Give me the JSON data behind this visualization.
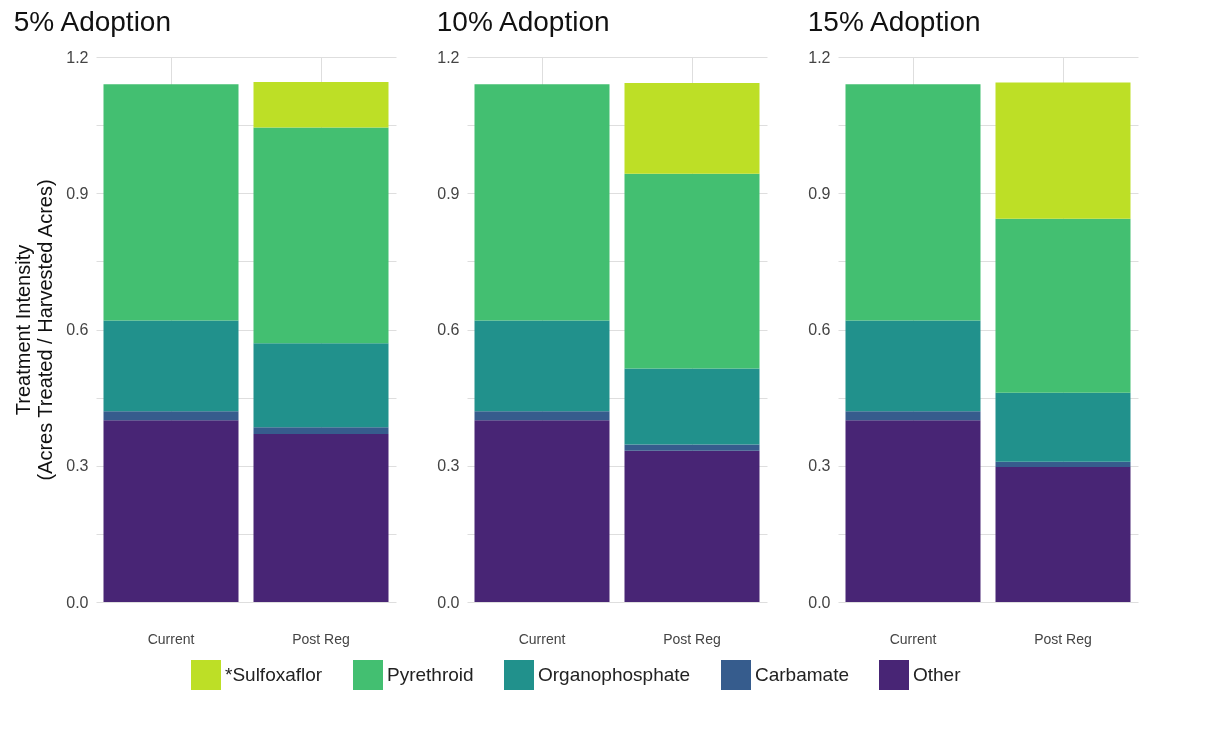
{
  "chart_data": [
    {
      "type": "bar",
      "title": "5% Adoption",
      "ylabel": "Treatment Intensity\n(Acres Treated / Harvested Acres)",
      "stacked": true,
      "grid": true,
      "legend": "bottom",
      "categories": [
        "Current",
        "Post Reg"
      ],
      "ylim": [
        0,
        1.2
      ],
      "yticks": [
        {
          "value": 0,
          "label": "0.0"
        },
        {
          "value": 0.15,
          "label": null
        },
        0.3,
        {
          "value": 0.45,
          "label": null
        },
        0.6,
        {
          "value": 0.75,
          "label": null
        },
        0.9,
        {
          "value": 1.05,
          "label": null
        },
        1.2
      ],
      "series": [
        {
          "name": "Other",
          "color": "#482575",
          "values": [
            0.4,
            0.37
          ]
        },
        {
          "name": "Carbamate",
          "color": "#365c8d",
          "values": [
            0.02,
            0.015
          ]
        },
        {
          "name": "Organophosphate",
          "color": "#21918c",
          "values": [
            0.2,
            0.185
          ]
        },
        {
          "name": "Pyrethroid",
          "color": "#43bf71",
          "values": [
            0.52,
            0.475
          ]
        },
        {
          "name": "*Sulfoxaflor",
          "color": "#bddf26",
          "values": [
            0,
            0.1
          ]
        }
      ]
    },
    {
      "type": "bar",
      "title": "10% Adoption",
      "stacked": true,
      "grid": true,
      "legend": "bottom",
      "categories": [
        "Current",
        "Post Reg"
      ],
      "ylim": [
        0,
        1.2
      ],
      "yticks": [
        {
          "value": 0,
          "label": "0.0"
        },
        {
          "value": 0.15,
          "label": null
        },
        0.3,
        {
          "value": 0.45,
          "label": null
        },
        0.6,
        {
          "value": 0.75,
          "label": null
        },
        0.9,
        {
          "value": 1.05,
          "label": null
        },
        1.2
      ],
      "series": [
        {
          "name": "Other",
          "color": "#482575",
          "values": [
            0.4,
            0.333
          ]
        },
        {
          "name": "Carbamate",
          "color": "#365c8d",
          "values": [
            0.02,
            0.014
          ]
        },
        {
          "name": "Organophosphate",
          "color": "#21918c",
          "values": [
            0.2,
            0.167
          ]
        },
        {
          "name": "Pyrethroid",
          "color": "#43bf71",
          "values": [
            0.52,
            0.429
          ]
        },
        {
          "name": "*Sulfoxaflor",
          "color": "#bddf26",
          "values": [
            0,
            0.2
          ]
        }
      ]
    },
    {
      "type": "bar",
      "title": "15% Adoption",
      "stacked": true,
      "grid": true,
      "legend": "bottom",
      "categories": [
        "Current",
        "Post Reg"
      ],
      "ylim": [
        0,
        1.2
      ],
      "yticks": [
        {
          "value": 0,
          "label": "0.0"
        },
        {
          "value": 0.15,
          "label": null
        },
        0.3,
        {
          "value": 0.45,
          "label": null
        },
        0.6,
        {
          "value": 0.75,
          "label": null
        },
        0.9,
        {
          "value": 1.05,
          "label": null
        },
        1.2
      ],
      "series": [
        {
          "name": "Other",
          "color": "#482575",
          "values": [
            0.4,
            0.297
          ]
        },
        {
          "name": "Carbamate",
          "color": "#365c8d",
          "values": [
            0.02,
            0.012
          ]
        },
        {
          "name": "Organophosphate",
          "color": "#21918c",
          "values": [
            0.2,
            0.152
          ]
        },
        {
          "name": "Pyrethroid",
          "color": "#43bf71",
          "values": [
            0.52,
            0.383
          ]
        },
        {
          "name": "*Sulfoxaflor",
          "color": "#bddf26",
          "values": [
            0,
            0.3
          ]
        }
      ]
    }
  ]
}
